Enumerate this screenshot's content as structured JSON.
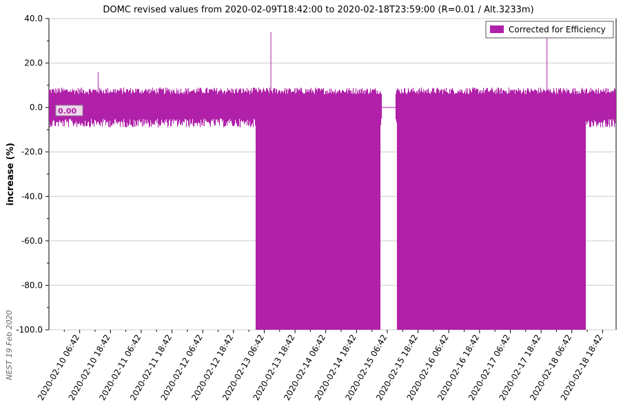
{
  "chart_data": {
    "type": "area",
    "title": "DOMC revised values from 2020-02-09T18:42:00 to 2020-02-18T23:59:00 (R=0.01 / Alt.3233m)",
    "ylabel": "increase (%)",
    "xlabel": "",
    "ylim": [
      -100,
      40
    ],
    "yticks": [
      "40.0",
      "20.0",
      "0.0",
      "-20.0",
      "-40.0",
      "-60.0",
      "-80.0",
      "-100.0"
    ],
    "yticks_values": [
      40,
      20,
      0,
      -20,
      -40,
      -60,
      -80,
      -100
    ],
    "xticks": [
      "2020-02-10 06:42",
      "2020-02-10 18:42",
      "2020-02-11 06:42",
      "2020-02-11 18:42",
      "2020-02-12 06:42",
      "2020-02-12 18:42",
      "2020-02-13 06:42",
      "2020-02-13 18:42",
      "2020-02-14 06:42",
      "2020-02-14 18:42",
      "2020-02-15 06:42",
      "2020-02-15 18:42",
      "2020-02-16 06:42",
      "2020-02-16 18:42",
      "2020-02-17 06:42",
      "2020-02-17 18:42",
      "2020-02-18 06:42",
      "2020-02-18 18:42"
    ],
    "xticks_hours": [
      12,
      24,
      36,
      48,
      60,
      72,
      84,
      96,
      108,
      120,
      132,
      144,
      156,
      168,
      180,
      192,
      204,
      216
    ],
    "x_range_hours": [
      0,
      221.28
    ],
    "grid": true,
    "legend_position": "top-right",
    "series": [
      {
        "name": "Corrected for Efficiency",
        "color": "#b020a8",
        "noise_band": [
          -5,
          6
        ],
        "spikes": [
          {
            "x_hours": 19.2,
            "y": 16
          },
          {
            "x_hours": 86.6,
            "y": 34
          },
          {
            "x_hours": 194.3,
            "y": 33
          }
        ],
        "data_gap_hours": [
          129.6,
          135.2
        ],
        "gap_value": 0,
        "dropout_blocks_to_minus100": [
          [
            80.4,
            129.2
          ],
          [
            135.6,
            209.2
          ]
        ]
      }
    ],
    "annotation": "0.00",
    "watermark": "NEST 19 Feb 2020"
  }
}
